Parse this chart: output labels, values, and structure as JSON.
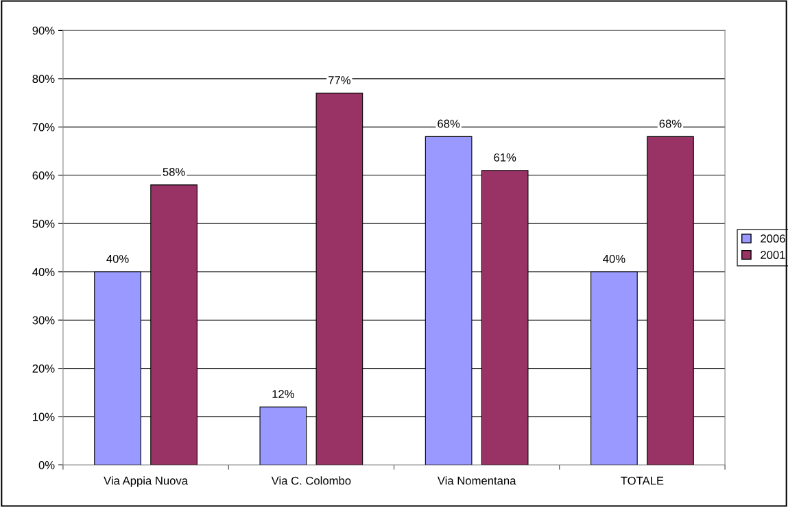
{
  "chart_data": {
    "type": "bar",
    "categories": [
      "Via Appia Nuova",
      "Via C. Colombo",
      "Via Nomentana",
      "TOTALE"
    ],
    "series": [
      {
        "name": "2006",
        "color": "#9999ff",
        "values": [
          40,
          12,
          68,
          40
        ],
        "value_labels": [
          "40%",
          "12%",
          "68%",
          "40%"
        ]
      },
      {
        "name": "2001",
        "color": "#993366",
        "values": [
          58,
          77,
          61,
          68
        ],
        "value_labels": [
          "58%",
          "77%",
          "61%",
          "68%"
        ]
      }
    ],
    "ylim": [
      0,
      90
    ],
    "yticks": [
      {
        "value": 0,
        "label": "0%"
      },
      {
        "value": 10,
        "label": "10%"
      },
      {
        "value": 20,
        "label": "20%"
      },
      {
        "value": 30,
        "label": "30%"
      },
      {
        "value": 40,
        "label": "40%"
      },
      {
        "value": 50,
        "label": "50%"
      },
      {
        "value": 60,
        "label": "60%"
      },
      {
        "value": 70,
        "label": "70%"
      },
      {
        "value": 80,
        "label": "80%"
      },
      {
        "value": 90,
        "label": "90%"
      }
    ],
    "grid": "y",
    "legend": "right"
  }
}
